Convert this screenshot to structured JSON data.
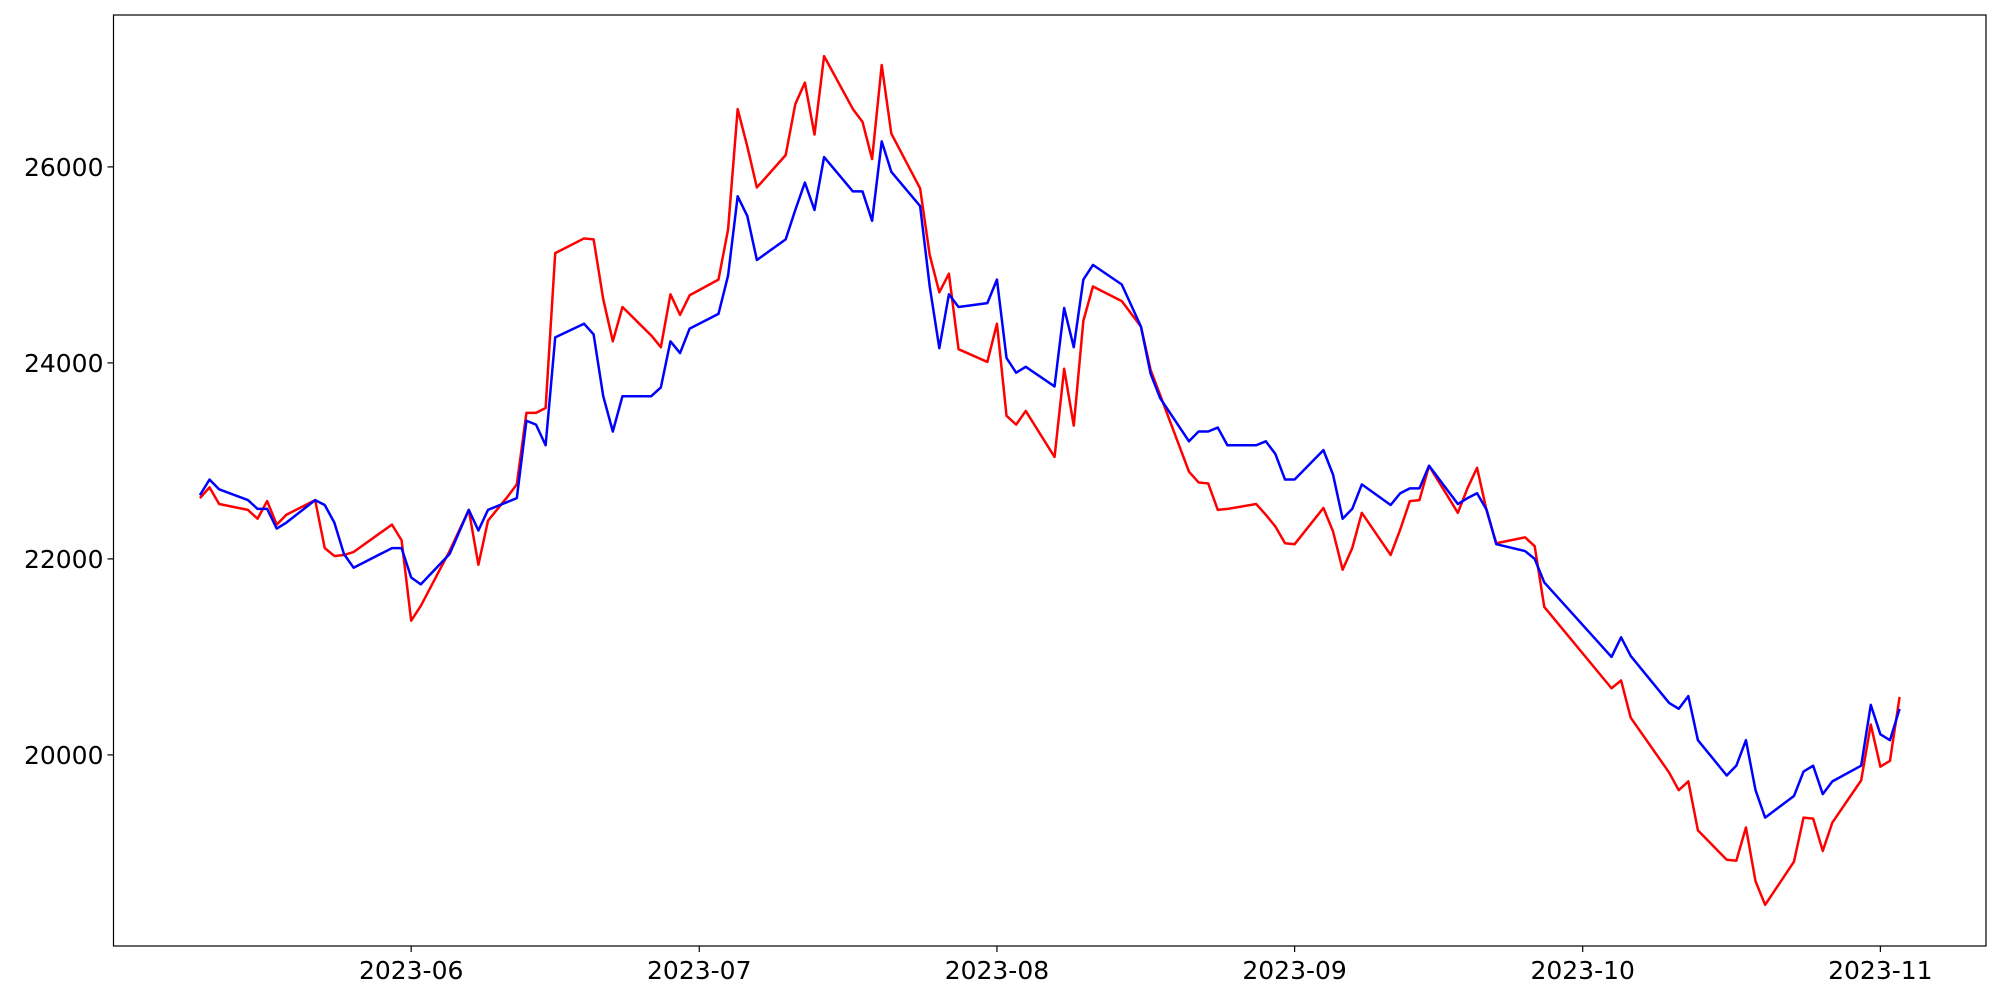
{
  "chart_data": {
    "type": "line",
    "x": [
      "2023-05-10",
      "2023-05-11",
      "2023-05-12",
      "2023-05-15",
      "2023-05-16",
      "2023-05-17",
      "2023-05-18",
      "2023-05-19",
      "2023-05-22",
      "2023-05-23",
      "2023-05-24",
      "2023-05-25",
      "2023-05-26",
      "2023-05-30",
      "2023-05-31",
      "2023-06-01",
      "2023-06-02",
      "2023-06-05",
      "2023-06-07",
      "2023-06-08",
      "2023-06-09",
      "2023-06-11",
      "2023-06-12",
      "2023-06-13",
      "2023-06-14",
      "2023-06-15",
      "2023-06-16",
      "2023-06-19",
      "2023-06-20",
      "2023-06-21",
      "2023-06-22",
      "2023-06-23",
      "2023-06-26",
      "2023-06-27",
      "2023-06-28",
      "2023-06-29",
      "2023-06-30",
      "2023-07-03",
      "2023-07-04",
      "2023-07-05",
      "2023-07-06",
      "2023-07-07",
      "2023-07-10",
      "2023-07-11",
      "2023-07-12",
      "2023-07-13",
      "2023-07-14",
      "2023-07-17",
      "2023-07-18",
      "2023-07-19",
      "2023-07-20",
      "2023-07-21",
      "2023-07-24",
      "2023-07-25",
      "2023-07-26",
      "2023-07-27",
      "2023-07-28",
      "2023-07-31",
      "2023-08-01",
      "2023-08-02",
      "2023-08-03",
      "2023-08-04",
      "2023-08-07",
      "2023-08-08",
      "2023-08-09",
      "2023-08-10",
      "2023-08-11",
      "2023-08-14",
      "2023-08-16",
      "2023-08-17",
      "2023-08-18",
      "2023-08-21",
      "2023-08-22",
      "2023-08-23",
      "2023-08-24",
      "2023-08-25",
      "2023-08-28",
      "2023-08-29",
      "2023-08-30",
      "2023-08-31",
      "2023-09-01",
      "2023-09-04",
      "2023-09-05",
      "2023-09-06",
      "2023-09-07",
      "2023-09-08",
      "2023-09-11",
      "2023-09-12",
      "2023-09-13",
      "2023-09-14",
      "2023-09-15",
      "2023-09-18",
      "2023-09-19",
      "2023-09-20",
      "2023-09-21",
      "2023-09-22",
      "2023-09-25",
      "2023-09-26",
      "2023-09-27",
      "2023-10-04",
      "2023-10-05",
      "2023-10-06",
      "2023-10-10",
      "2023-10-11",
      "2023-10-12",
      "2023-10-13",
      "2023-10-16",
      "2023-10-17",
      "2023-10-18",
      "2023-10-19",
      "2023-10-20",
      "2023-10-23",
      "2023-10-24",
      "2023-10-25",
      "2023-10-26",
      "2023-10-27",
      "2023-10-30",
      "2023-10-31",
      "2023-11-01",
      "2023-11-02",
      "2023-11-03"
    ],
    "series": [
      {
        "color": "#ff0000",
        "values": [
          22620,
          22730,
          22560,
          22500,
          22410,
          22590,
          22350,
          22450,
          22600,
          22110,
          22030,
          22040,
          22070,
          22350,
          22190,
          21370,
          21520,
          22080,
          22500,
          21940,
          22390,
          22630,
          22760,
          23490,
          23490,
          23540,
          25120,
          25270,
          25260,
          24650,
          24220,
          24570,
          24280,
          24160,
          24700,
          24490,
          24690,
          24850,
          25360,
          26590,
          26210,
          25790,
          26120,
          26640,
          26860,
          26330,
          27130,
          26590,
          26460,
          26080,
          27040,
          26340,
          25780,
          25100,
          24720,
          24910,
          24140,
          24010,
          24400,
          23460,
          23370,
          23510,
          23040,
          23940,
          23360,
          24430,
          24780,
          24630,
          24370,
          23930,
          23670,
          22890,
          22780,
          22770,
          22500,
          22510,
          22560,
          22450,
          22330,
          22160,
          22150,
          22520,
          22280,
          21890,
          22110,
          22470,
          22040,
          22300,
          22590,
          22600,
          22950,
          22470,
          22720,
          22930,
          22490,
          22160,
          22220,
          22130,
          21510,
          20680,
          20760,
          20380,
          19820,
          19640,
          19730,
          19230,
          18930,
          18920,
          19260,
          18710,
          18470,
          18910,
          19360,
          19350,
          19020,
          19310,
          19740,
          20310,
          19880,
          19940,
          20590
        ]
      },
      {
        "color": "#0000ff",
        "values": [
          22650,
          22810,
          22710,
          22600,
          22510,
          22510,
          22310,
          22370,
          22600,
          22550,
          22370,
          22050,
          21910,
          22110,
          22110,
          21810,
          21740,
          22050,
          22500,
          22290,
          22500,
          22580,
          22620,
          23410,
          23370,
          23160,
          24260,
          24400,
          24290,
          23660,
          23300,
          23660,
          23660,
          23750,
          24220,
          24100,
          24350,
          24500,
          24890,
          25700,
          25500,
          25050,
          25260,
          25560,
          25840,
          25560,
          26100,
          25750,
          25750,
          25450,
          26260,
          25950,
          25600,
          24780,
          24150,
          24700,
          24570,
          24610,
          24850,
          24050,
          23900,
          23960,
          23760,
          24560,
          24160,
          24850,
          25000,
          24800,
          24370,
          23890,
          23640,
          23200,
          23300,
          23300,
          23340,
          23160,
          23160,
          23200,
          23070,
          22810,
          22810,
          23110,
          22860,
          22410,
          22510,
          22760,
          22550,
          22670,
          22720,
          22720,
          22950,
          22560,
          22620,
          22670,
          22500,
          22150,
          22080,
          22000,
          21760,
          21000,
          21200,
          21010,
          20530,
          20470,
          20600,
          20150,
          19790,
          19890,
          20150,
          19640,
          19360,
          19580,
          19830,
          19890,
          19600,
          19730,
          19890,
          20510,
          20210,
          20150,
          20470
        ]
      }
    ],
    "xlim": [
      "2023-05-01",
      "2023-11-12"
    ],
    "xticks": [
      {
        "value": "2023-06-01",
        "label": "2023-06"
      },
      {
        "value": "2023-07-01",
        "label": "2023-07"
      },
      {
        "value": "2023-08-01",
        "label": "2023-08"
      },
      {
        "value": "2023-09-01",
        "label": "2023-09"
      },
      {
        "value": "2023-10-01",
        "label": "2023-10"
      },
      {
        "value": "2023-11-01",
        "label": "2023-11"
      }
    ],
    "ylim": [
      18050,
      27550
    ],
    "yticks": [
      20000,
      22000,
      24000,
      26000
    ],
    "grid": false
  }
}
